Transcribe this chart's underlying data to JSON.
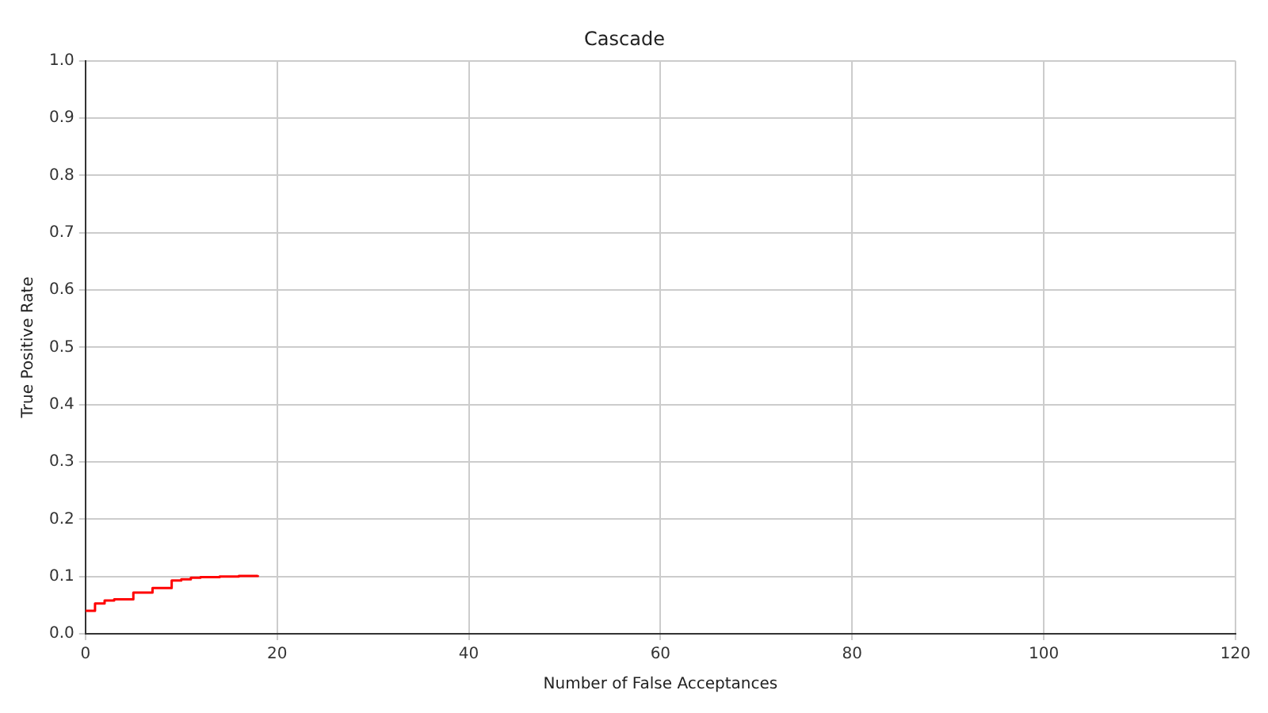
{
  "chart_data": {
    "type": "step",
    "title": "Cascade",
    "xlabel": "Number of False Acceptances",
    "ylabel": "True Positive Rate",
    "x": [
      0,
      1,
      2,
      3,
      5,
      7,
      9,
      10,
      11,
      12,
      14,
      16,
      18
    ],
    "series": [
      {
        "color": "#ff0000",
        "values": [
          0.04,
          0.053,
          0.058,
          0.06,
          0.072,
          0.08,
          0.093,
          0.095,
          0.098,
          0.099,
          0.1,
          0.101,
          0.102
        ]
      }
    ],
    "xlim": [
      0,
      120
    ],
    "xticks": [
      0,
      20,
      40,
      60,
      80,
      100,
      120
    ],
    "ylim": [
      0,
      1
    ],
    "yticks": [
      {
        "value": 0,
        "label": "0.0"
      },
      0.1,
      0.2,
      0.3,
      0.4,
      0.5,
      0.6,
      0.7,
      0.8,
      0.9,
      {
        "value": 1,
        "label": "1.0"
      }
    ],
    "grid": true,
    "legend": false,
    "marker": "none",
    "line_style": "solid"
  }
}
